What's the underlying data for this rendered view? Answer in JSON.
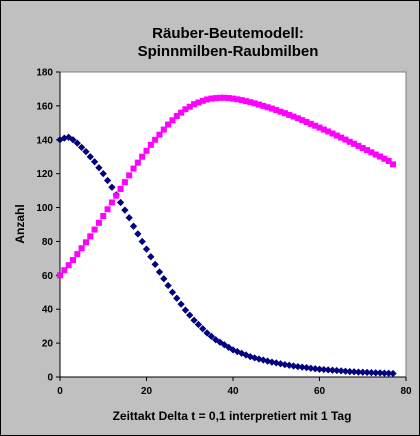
{
  "chart_data": {
    "type": "scatter",
    "title_lines": [
      "Räuber-Beutemodell:",
      "Spinnmilben-Raubmilben"
    ],
    "xlabel": "Zeittakt Delta t = 0,1 interpretiert mit 1 Tag",
    "ylabel": "Anzahl",
    "xlim": [
      0,
      80
    ],
    "ylim": [
      0,
      180
    ],
    "xticks": [
      0,
      20,
      40,
      60,
      80
    ],
    "yticks": [
      0,
      20,
      40,
      60,
      80,
      100,
      120,
      140,
      160,
      180
    ],
    "x_tick_labels": [
      "0",
      "20",
      "40",
      "60",
      "80"
    ],
    "y_tick_labels": [
      "0",
      "20",
      "40",
      "60",
      "80",
      "100",
      "120",
      "140",
      "160",
      "180"
    ],
    "grid": false,
    "colors": {
      "background": "#c0c0c0",
      "plot_area": "#ffffff",
      "series_prey": "#000080",
      "series_predator": "#ff00ff"
    },
    "series": [
      {
        "marker": "diamond",
        "color": "#000080",
        "x": [
          0,
          1,
          2,
          3,
          4,
          5,
          6,
          7,
          8,
          9,
          10,
          11,
          12,
          13,
          14,
          15,
          16,
          17,
          18,
          19,
          20,
          21,
          22,
          23,
          24,
          25,
          26,
          27,
          28,
          29,
          30,
          31,
          32,
          33,
          34,
          35,
          36,
          37,
          38,
          39,
          40,
          41,
          42,
          43,
          44,
          45,
          46,
          47,
          48,
          49,
          50,
          51,
          52,
          53,
          54,
          55,
          56,
          57,
          58,
          59,
          60,
          61,
          62,
          63,
          64,
          65,
          66,
          67,
          68,
          69,
          70,
          71,
          72,
          73,
          74,
          75,
          76,
          77
        ],
        "y": [
          140,
          141,
          141.5,
          140,
          138,
          135.5,
          133,
          130,
          127,
          123.5,
          120,
          116,
          112,
          107.5,
          103,
          98.5,
          94,
          89,
          84.5,
          80,
          75.5,
          71,
          66.5,
          62,
          58,
          54,
          50,
          46.5,
          43,
          39.5,
          36.5,
          33.5,
          31,
          28.5,
          26,
          24,
          22,
          20.5,
          19,
          17.5,
          16,
          15,
          14,
          13,
          12,
          11.3,
          10.6,
          10,
          9.4,
          8.8,
          8.3,
          7.8,
          7.3,
          6.9,
          6.5,
          6.1,
          5.8,
          5.5,
          5.2,
          4.9,
          4.6,
          4.4,
          4.2,
          4,
          3.8,
          3.6,
          3.4,
          3.2,
          3.1,
          2.9,
          2.8,
          2.7,
          2.6,
          2.5,
          2.4,
          2.3,
          2.2,
          2.1
        ]
      },
      {
        "marker": "square",
        "color": "#ff00ff",
        "x": [
          0,
          1,
          2,
          3,
          4,
          5,
          6,
          7,
          8,
          9,
          10,
          11,
          12,
          13,
          14,
          15,
          16,
          17,
          18,
          19,
          20,
          21,
          22,
          23,
          24,
          25,
          26,
          27,
          28,
          29,
          30,
          31,
          32,
          33,
          34,
          35,
          36,
          37,
          38,
          39,
          40,
          41,
          42,
          43,
          44,
          45,
          46,
          47,
          48,
          49,
          50,
          51,
          52,
          53,
          54,
          55,
          56,
          57,
          58,
          59,
          60,
          61,
          62,
          63,
          64,
          65,
          66,
          67,
          68,
          69,
          70,
          71,
          72,
          73,
          74,
          75,
          76,
          77
        ],
        "y": [
          60,
          63,
          66,
          69,
          72.5,
          76,
          79.5,
          83,
          87,
          91,
          95,
          99,
          103,
          107,
          111,
          115,
          119,
          123,
          126.5,
          130,
          133.5,
          137,
          140,
          143,
          146,
          149,
          151.5,
          154,
          156,
          158,
          159.5,
          161,
          162,
          163,
          163.8,
          164.3,
          164.6,
          164.8,
          164.8,
          164.6,
          164.3,
          163.9,
          163.4,
          162.8,
          162.2,
          161.5,
          160.8,
          160,
          159.2,
          158.4,
          157.5,
          156.6,
          155.7,
          154.7,
          153.7,
          152.7,
          151.6,
          150.5,
          149.4,
          148.3,
          147.2,
          146,
          144.9,
          143.7,
          142.5,
          141.3,
          140.1,
          138.8,
          137.6,
          136.4,
          135.1,
          133.9,
          132.6,
          131.3,
          130.1,
          128.8,
          127.5,
          125.5
        ]
      }
    ]
  }
}
